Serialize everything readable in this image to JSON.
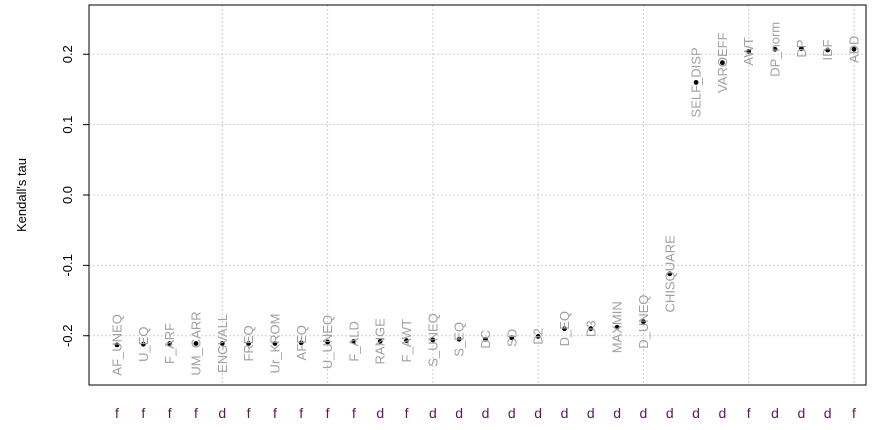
{
  "chart_data": {
    "type": "scatter",
    "ylabel": "Kendall's tau",
    "xlabel": "",
    "title": "",
    "ylim": [
      -0.27,
      0.27
    ],
    "yticks": [
      -0.2,
      -0.1,
      0.0,
      0.1,
      0.2
    ],
    "ytick_labels": [
      "-0.2",
      "-0.1",
      "0.0",
      "0.1",
      "0.2"
    ],
    "grid": true,
    "points": [
      {
        "label": "AF_UNEQ",
        "code": "f",
        "y": -0.213
      },
      {
        "label": "U_EQ",
        "code": "f",
        "y": -0.212
      },
      {
        "label": "F_ARF",
        "code": "f",
        "y": -0.211
      },
      {
        "label": "UM_CARR",
        "code": "f",
        "y": -0.211
      },
      {
        "label": "ENGVALL",
        "code": "d",
        "y": -0.211
      },
      {
        "label": "FREQ",
        "code": "f",
        "y": -0.211
      },
      {
        "label": "Ur_KROM",
        "code": "f",
        "y": -0.211
      },
      {
        "label": "AFEQ",
        "code": "f",
        "y": -0.21
      },
      {
        "label": "U_UNEQ",
        "code": "f",
        "y": -0.209
      },
      {
        "label": "F_ALD",
        "code": "f",
        "y": -0.208
      },
      {
        "label": "RANGE",
        "code": "d",
        "y": -0.208
      },
      {
        "label": "F_AWT",
        "code": "f",
        "y": -0.207
      },
      {
        "label": "S_UNEQ",
        "code": "d",
        "y": -0.206
      },
      {
        "label": "S_EQ",
        "code": "d",
        "y": -0.205
      },
      {
        "label": "DC",
        "code": "d",
        "y": -0.205
      },
      {
        "label": "SD",
        "code": "d",
        "y": -0.203
      },
      {
        "label": "D2",
        "code": "d",
        "y": -0.201
      },
      {
        "label": "D_EQ",
        "code": "d",
        "y": -0.19
      },
      {
        "label": "D3",
        "code": "d",
        "y": -0.19
      },
      {
        "label": "MAXMIN",
        "code": "d",
        "y": -0.188
      },
      {
        "label": "D_UNEQ",
        "code": "d",
        "y": -0.18
      },
      {
        "label": "CHISQUARE",
        "code": "d",
        "y": -0.112
      },
      {
        "label": "SELF_DISP",
        "code": "d",
        "y": 0.16
      },
      {
        "label": "VAROEFF",
        "code": "d",
        "y": 0.188
      },
      {
        "label": "AWT",
        "code": "f",
        "y": 0.204
      },
      {
        "label": "DP_norm",
        "code": "d",
        "y": 0.207
      },
      {
        "label": "DP",
        "code": "d",
        "y": 0.208
      },
      {
        "label": "IDF",
        "code": "d",
        "y": 0.206
      },
      {
        "label": "ADD",
        "code": "f",
        "y": 0.207
      }
    ],
    "vertical_grid_after_index": [
      4,
      8,
      12,
      16,
      20,
      24,
      28
    ]
  }
}
